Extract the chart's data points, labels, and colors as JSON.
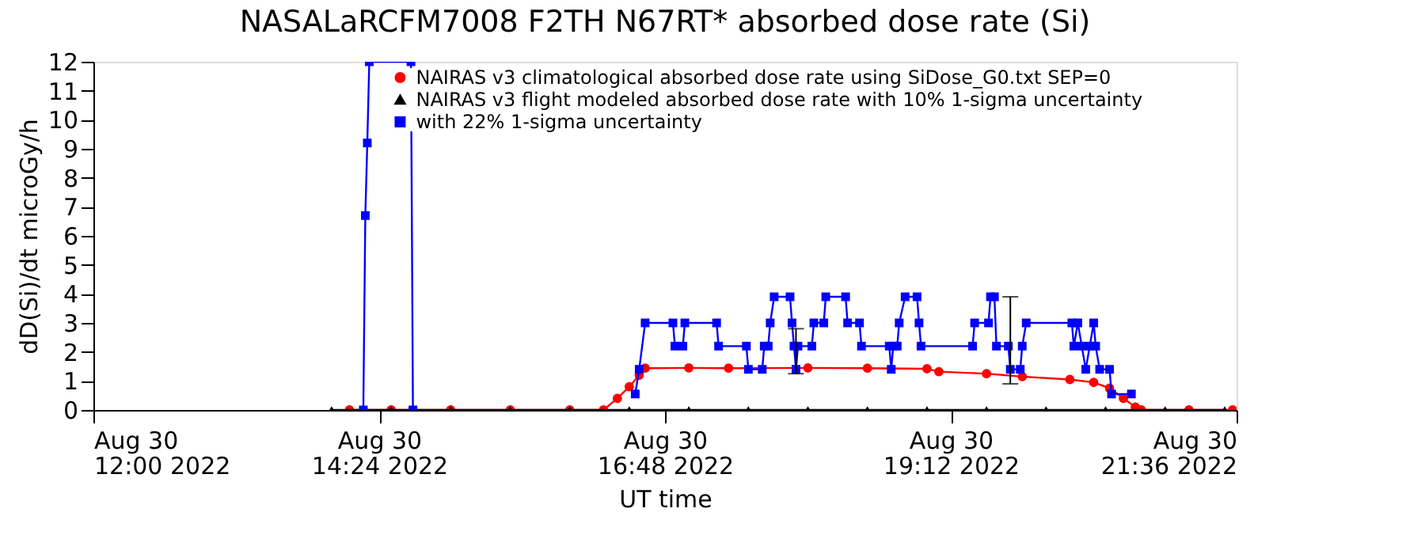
{
  "chart_data": {
    "type": "line",
    "title": "NASALaRCFM7008  F2TH N67RT* absorbed dose rate (Si)",
    "xlabel": "UT time",
    "ylabel": "dD(Si)/dt microGy/h",
    "xlim": [
      "2022-08-30T12:00",
      "2022-08-30T21:36"
    ],
    "xticks": [
      {
        "value": "2022-08-30T12:00",
        "label": "Aug 30\n12:00 2022"
      },
      {
        "value": "2022-08-30T14:24",
        "label": "Aug 30\n14:24 2022"
      },
      {
        "value": "2022-08-30T16:48",
        "label": "Aug 30\n16:48 2022"
      },
      {
        "value": "2022-08-30T19:12",
        "label": "Aug 30\n19:12 2022"
      },
      {
        "value": "2022-08-30T21:36",
        "label": "Aug 30\n21:36 2022"
      }
    ],
    "ylim": [
      0,
      12
    ],
    "yticks": [
      0,
      1,
      2,
      3,
      4,
      5,
      6,
      7,
      8,
      9,
      10,
      11,
      12
    ],
    "grid": false,
    "legend": "top",
    "line_style": "solid",
    "series": [
      {
        "name": "NAIRAS v3 climatological absorbed dose rate using SiDose_G0.txt SEP=0",
        "color": "#ff0000",
        "marker": "circle",
        "x": [
          "2022-08-30T14:09",
          "2022-08-30T14:30",
          "2022-08-30T15:00",
          "2022-08-30T15:30",
          "2022-08-30T16:00",
          "2022-08-30T16:17",
          "2022-08-30T16:24",
          "2022-08-30T16:30",
          "2022-08-30T16:35",
          "2022-08-30T16:38",
          "2022-08-30T17:00",
          "2022-08-30T17:20",
          "2022-08-30T18:00",
          "2022-08-30T18:30",
          "2022-08-30T19:00",
          "2022-08-30T19:06",
          "2022-08-30T19:30",
          "2022-08-30T19:48",
          "2022-08-30T20:12",
          "2022-08-30T20:24",
          "2022-08-30T20:32",
          "2022-08-30T20:39",
          "2022-08-30T20:45",
          "2022-08-30T20:48",
          "2022-08-30T21:12",
          "2022-08-30T21:34"
        ],
        "values": [
          0,
          0,
          0,
          0,
          0,
          0,
          0.4,
          0.8,
          1.2,
          1.44,
          1.45,
          1.44,
          1.45,
          1.44,
          1.42,
          1.32,
          1.25,
          1.15,
          1.05,
          0.95,
          0.75,
          0.4,
          0.1,
          0,
          0,
          0
        ]
      },
      {
        "name": "NAIRAS v3 flight modeled absorbed dose rate with 10% 1-sigma uncertainty",
        "color": "#000000",
        "marker": "triangle",
        "x": [
          "2022-08-30T14:00",
          "2022-08-30T14:30",
          "2022-08-30T15:00",
          "2022-08-30T15:30",
          "2022-08-30T16:00",
          "2022-08-30T16:30",
          "2022-08-30T17:00",
          "2022-08-30T17:30",
          "2022-08-30T18:00",
          "2022-08-30T18:30",
          "2022-08-30T19:00",
          "2022-08-30T19:30",
          "2022-08-30T20:00",
          "2022-08-30T20:30",
          "2022-08-30T21:00",
          "2022-08-30T21:30"
        ],
        "values": [
          0,
          0,
          0,
          0,
          0,
          0,
          0,
          0,
          0,
          0,
          0,
          0,
          0,
          0,
          0,
          0
        ]
      },
      {
        "name": "with 22% 1-sigma uncertainty",
        "color": "#0000ff",
        "marker": "square",
        "x": [
          "2022-08-30T14:16",
          "2022-08-30T14:17",
          "2022-08-30T14:18",
          "2022-08-30T14:19",
          "2022-08-30T14:40",
          "2022-08-30T14:41",
          "2022-08-30T15:30",
          "2022-08-30T16:33",
          "2022-08-30T16:35",
          "2022-08-30T16:38",
          "2022-08-30T16:52",
          "2022-08-30T16:53",
          "2022-08-30T16:57",
          "2022-08-30T16:58",
          "2022-08-30T17:14",
          "2022-08-30T17:15",
          "2022-08-30T17:29",
          "2022-08-30T17:30",
          "2022-08-30T17:37",
          "2022-08-30T17:38",
          "2022-08-30T17:40",
          "2022-08-30T17:41",
          "2022-08-30T17:43",
          "2022-08-30T17:51",
          "2022-08-30T17:52",
          "2022-08-30T17:53",
          "2022-08-30T17:54",
          "2022-08-30T17:55",
          "2022-08-30T18:02",
          "2022-08-30T18:03",
          "2022-08-30T18:08",
          "2022-08-30T18:09",
          "2022-08-30T18:19",
          "2022-08-30T18:20",
          "2022-08-30T18:26",
          "2022-08-30T18:27",
          "2022-08-30T18:41",
          "2022-08-30T18:42",
          "2022-08-30T18:43",
          "2022-08-30T18:45",
          "2022-08-30T18:46",
          "2022-08-30T18:49",
          "2022-08-30T18:55",
          "2022-08-30T18:56",
          "2022-08-30T18:57",
          "2022-08-30T19:23",
          "2022-08-30T19:24",
          "2022-08-30T19:31",
          "2022-08-30T19:32",
          "2022-08-30T19:34",
          "2022-08-30T19:35",
          "2022-08-30T19:41",
          "2022-08-30T19:42",
          "2022-08-30T19:47",
          "2022-08-30T19:48",
          "2022-08-30T19:50",
          "2022-08-30T20:13",
          "2022-08-30T20:14",
          "2022-08-30T20:16",
          "2022-08-30T20:18",
          "2022-08-30T20:20",
          "2022-08-30T20:22",
          "2022-08-30T20:24",
          "2022-08-30T20:25",
          "2022-08-30T20:27",
          "2022-08-30T20:32",
          "2022-08-30T20:33",
          "2022-08-30T20:43"
        ],
        "values": [
          0,
          6.7,
          9.2,
          12,
          12,
          0,
          null,
          0.55,
          1.4,
          3.0,
          3.0,
          2.2,
          2.2,
          3.0,
          3.0,
          2.2,
          2.2,
          1.4,
          1.4,
          2.2,
          2.2,
          3.0,
          3.9,
          3.9,
          3.0,
          2.2,
          1.4,
          2.2,
          2.2,
          3.0,
          3.0,
          3.9,
          3.9,
          3.0,
          3.0,
          2.2,
          2.2,
          1.4,
          2.2,
          2.2,
          3.0,
          3.9,
          3.9,
          3.0,
          2.2,
          2.2,
          3.0,
          3.0,
          3.9,
          3.9,
          2.2,
          2.2,
          1.4,
          1.4,
          2.2,
          3.0,
          3.0,
          2.2,
          3.0,
          2.2,
          1.4,
          2.2,
          3.0,
          2.2,
          1.4,
          1.4,
          0.55,
          0.55
        ],
        "errors": [
          null,
          null,
          null,
          null,
          null,
          null,
          null,
          null,
          null,
          null,
          null,
          null,
          null,
          null,
          null,
          null,
          null,
          null,
          null,
          null,
          null,
          null,
          null,
          null,
          null,
          null,
          [
            1.25,
            2.8
          ],
          null,
          null,
          null,
          null,
          null,
          null,
          null,
          null,
          null,
          null,
          null,
          null,
          null,
          null,
          null,
          null,
          null,
          null,
          null,
          null,
          null,
          null,
          null,
          null,
          null,
          [
            0.9,
            3.9
          ],
          null,
          null,
          null,
          null,
          null,
          null,
          null,
          null,
          null,
          null,
          null,
          null,
          null,
          null,
          null
        ]
      }
    ]
  }
}
